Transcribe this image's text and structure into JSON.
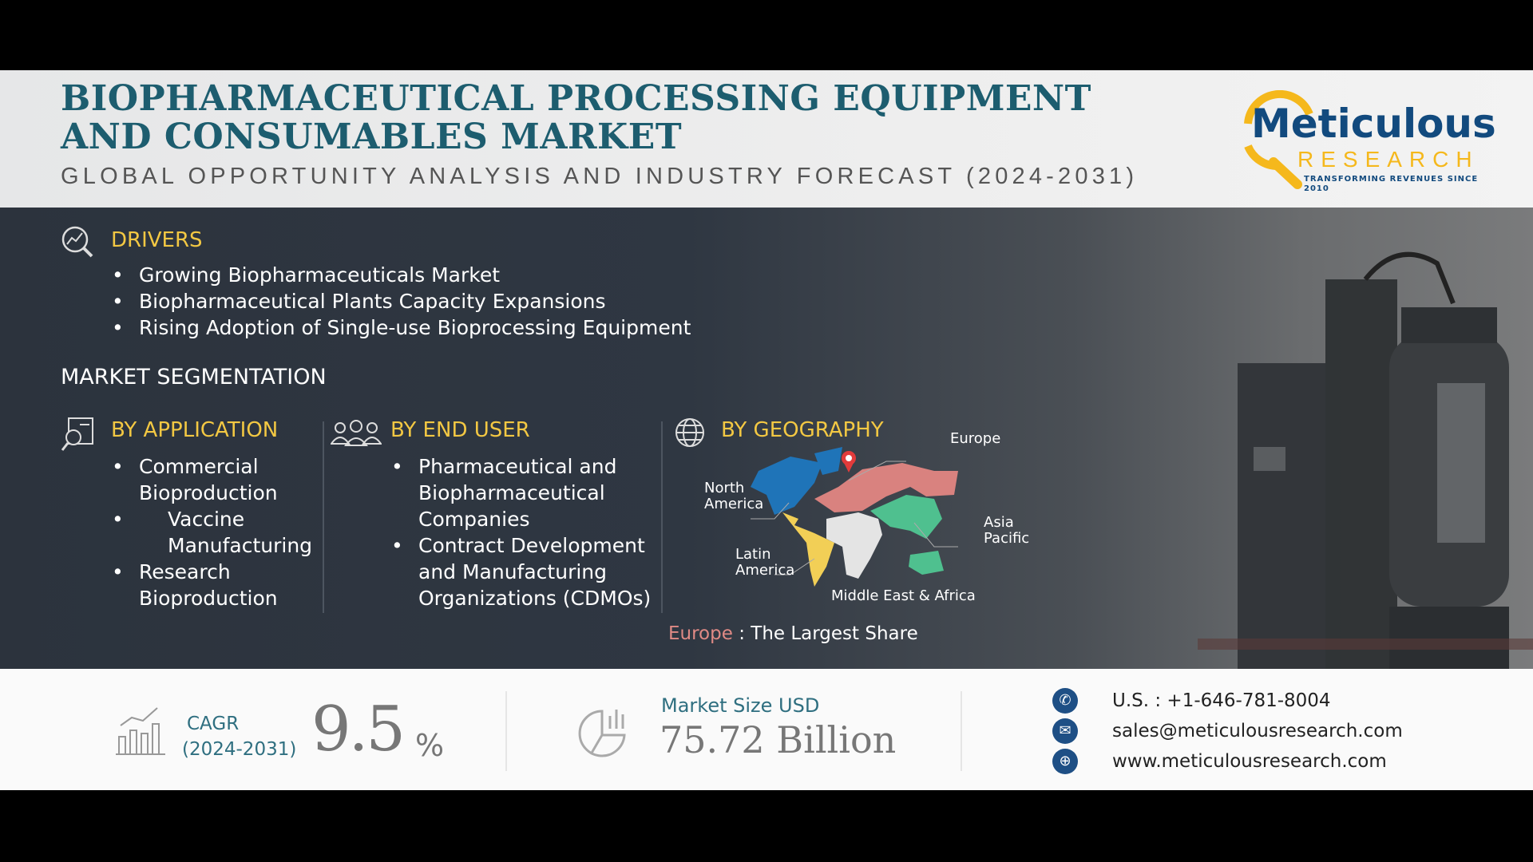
{
  "header": {
    "title_line1": "BIOPHARMACEUTICAL PROCESSING EQUIPMENT",
    "title_line2": "AND CONSUMABLES MARKET",
    "subtitle": "GLOBAL OPPORTUNITY ANALYSIS AND INDUSTRY FORECAST (2024-2031)",
    "logo": {
      "name": "Meticulous",
      "sub": "RESEARCH",
      "tagline": "TRANSFORMING REVENUES SINCE 2010"
    }
  },
  "drivers": {
    "icon": "magnifier-chart-icon",
    "heading": "DRIVERS",
    "items": [
      "Growing Biopharmaceuticals Market",
      "Biopharmaceutical Plants Capacity Expansions",
      "Rising Adoption of Single-use Bioprocessing Equipment"
    ]
  },
  "segmentation": {
    "heading": "MARKET SEGMENTATION",
    "application": {
      "icon": "report-search-icon",
      "heading": "BY APPLICATION",
      "items": [
        "Commercial Bioproduction",
        "Vaccine Manufacturing",
        "Research Bioproduction"
      ]
    },
    "end_user": {
      "icon": "users-group-icon",
      "heading": "BY END USER",
      "items": [
        "Pharmaceutical and Biopharmaceutical Companies",
        "Contract Development and Manufacturing Organizations (CDMOs)"
      ]
    },
    "geography": {
      "icon": "globe-icon",
      "heading": "BY GEOGRAPHY",
      "regions": [
        "Europe",
        "North America",
        "Asia Pacific",
        "Latin America",
        "Middle East & Africa"
      ],
      "region_colors": {
        "North America": "#1f74b8",
        "Europe": "#d9827f",
        "Asia Pacific": "#4fc08f",
        "Latin America": "#f2cf56",
        "Middle East & Africa": "#e4e4e4"
      },
      "highlight_region": "Europe",
      "highlight_text": ": The Largest Share"
    }
  },
  "stats": {
    "cagr_label": "CAGR",
    "cagr_period": "(2024-2031)",
    "cagr_value": "9.5",
    "cagr_unit": "%",
    "market_label": "Market Size USD",
    "market_value": "75.72 Billion"
  },
  "contact": {
    "phone": "U.S. : +1-646-781-8004",
    "email": "sales@meticulousresearch.com",
    "website": "www.meticulousresearch.com"
  },
  "colors": {
    "title": "#1d5d6f",
    "accent_yellow": "#f3c843",
    "logo_blue": "#124a7e",
    "europe_text": "#e08a85"
  }
}
